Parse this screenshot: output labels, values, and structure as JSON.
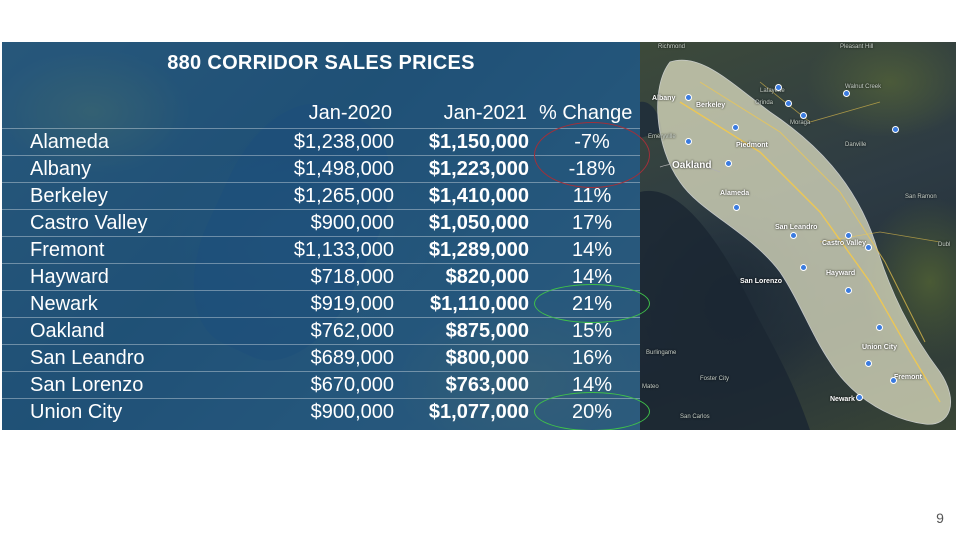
{
  "table": {
    "title": "880 CORRIDOR SALES PRICES",
    "headers": {
      "jan2020": "Jan-2020",
      "jan2021": "Jan-2021",
      "change": "% Change"
    },
    "rows": [
      {
        "city": "Alameda",
        "jan2020": "$1,238,000",
        "jan2021": "$1,150,000",
        "change": "-7%"
      },
      {
        "city": "Albany",
        "jan2020": "$1,498,000",
        "jan2021": "$1,223,000",
        "change": "-18%"
      },
      {
        "city": "Berkeley",
        "jan2020": "$1,265,000",
        "jan2021": "$1,410,000",
        "change": "11%"
      },
      {
        "city": "Castro Valley",
        "jan2020": "$900,000",
        "jan2021": "$1,050,000",
        "change": "17%"
      },
      {
        "city": "Fremont",
        "jan2020": "$1,133,000",
        "jan2021": "$1,289,000",
        "change": "14%"
      },
      {
        "city": "Hayward",
        "jan2020": "$718,000",
        "jan2021": "$820,000",
        "change": "14%"
      },
      {
        "city": "Newark",
        "jan2020": "$919,000",
        "jan2021": "$1,110,000",
        "change": "21%"
      },
      {
        "city": "Oakland",
        "jan2020": "$762,000",
        "jan2021": "$875,000",
        "change": "15%"
      },
      {
        "city": "San Leandro",
        "jan2020": "$689,000",
        "jan2021": "$800,000",
        "change": "16%"
      },
      {
        "city": "San Lorenzo",
        "jan2020": "$670,000",
        "jan2021": "$763,000",
        "change": "14%"
      },
      {
        "city": "Union City",
        "jan2020": "$900,000",
        "jan2021": "$1,077,000",
        "change": "20%"
      }
    ],
    "highlight_colors": {
      "decline": "#a0303a",
      "gain": "#3fc04a"
    }
  },
  "map": {
    "labels": {
      "richmond": "Richmond",
      "pleasant_hill": "Pleasant Hill",
      "albany": "Albany",
      "berkeley": "Berkeley",
      "lafayette": "Lafayette",
      "walnut_creek": "Walnut Creek",
      "orinda": "Orinda",
      "moraga": "Moraga",
      "emeryville": "Emeryville",
      "piedmont": "Piedmont",
      "danville": "Danville",
      "oakland": "Oakland",
      "alameda": "Alameda",
      "san_ramon": "San Ramon",
      "san_leandro": "San Leandro",
      "castro_valley": "Castro Valley",
      "dublin": "Dubl",
      "san_lorenzo": "San Lorenzo",
      "hayward": "Hayward",
      "union_city": "Union City",
      "fremont": "Fremont",
      "newark": "Newark",
      "burlingame": "Burlingame",
      "foster_city": "Foster City",
      "san_carlos": "San Carlos",
      "mateo": "Mateo"
    },
    "corridor_color": "#e6e6c8",
    "pin_color": "#3a7be0"
  },
  "page_number": "9"
}
